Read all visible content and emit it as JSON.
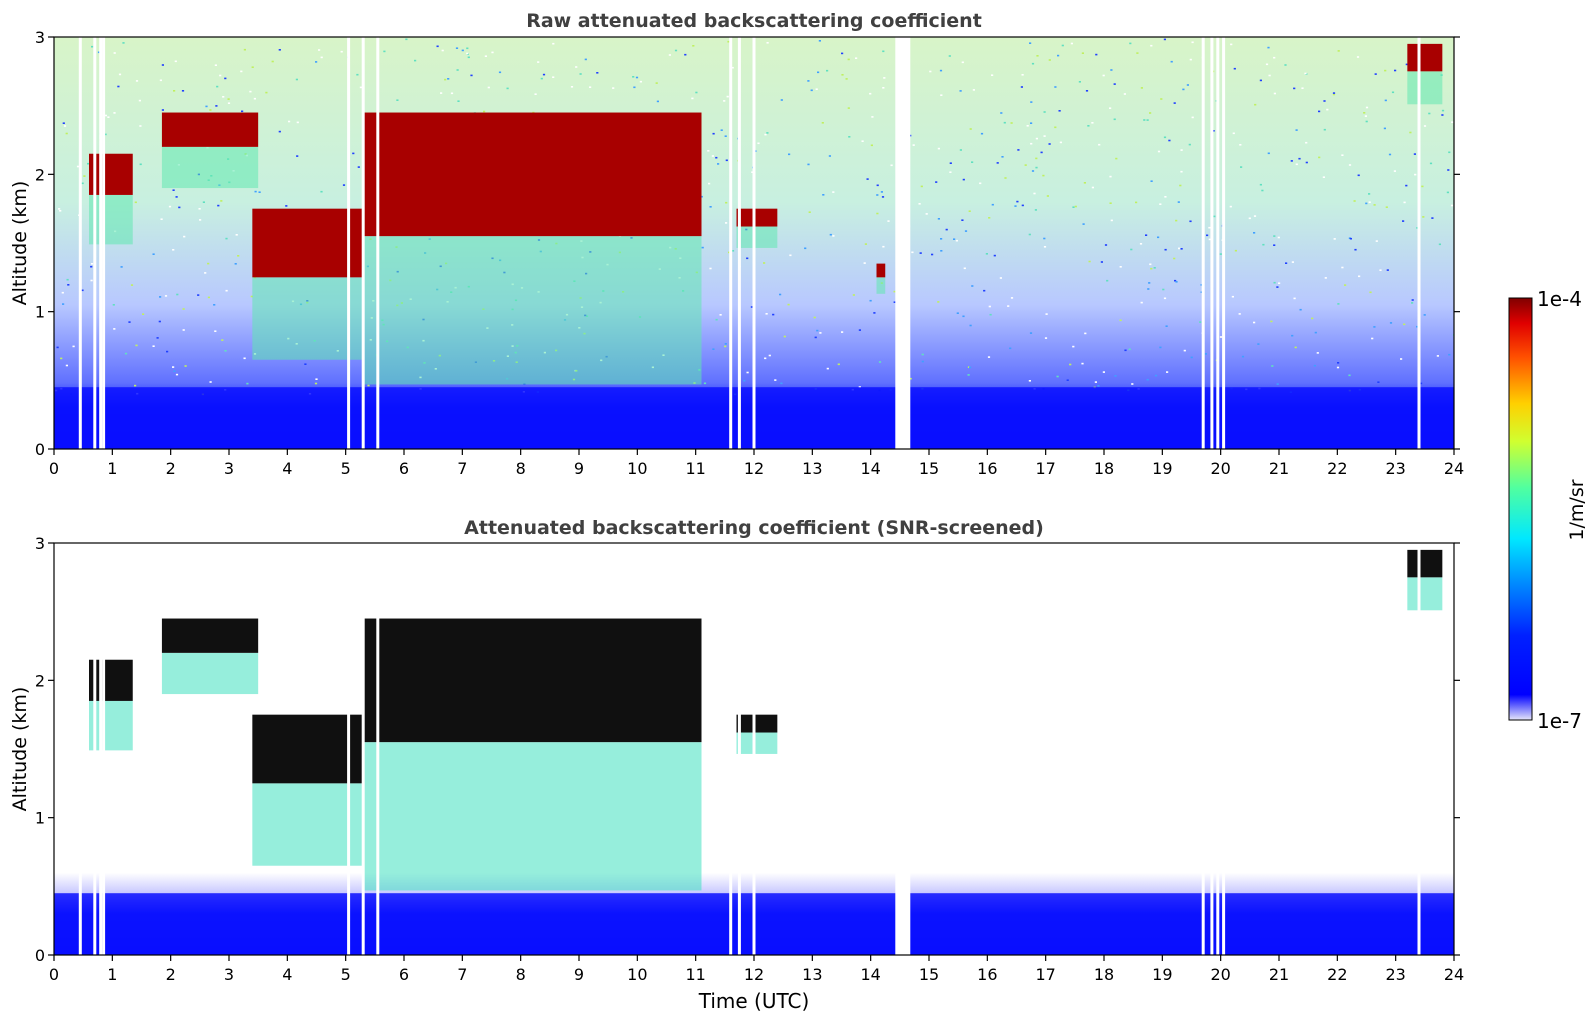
{
  "chart_data": [
    {
      "type": "heatmap",
      "title": "Raw attenuated backscattering coefficient",
      "xlabel": "",
      "ylabel": "Altitude (km)",
      "xlim": [
        0,
        24
      ],
      "ylim": [
        0,
        3
      ],
      "xticks": [
        "0",
        "1",
        "2",
        "3",
        "4",
        "5",
        "6",
        "7",
        "8",
        "9",
        "10",
        "11",
        "12",
        "13",
        "14",
        "15",
        "16",
        "17",
        "18",
        "19",
        "20",
        "21",
        "22",
        "23",
        "24"
      ],
      "yticks": [
        "0",
        "1",
        "2",
        "3"
      ],
      "scale": "log",
      "noise_screened": false,
      "features": [
        {
          "kind": "cloud",
          "x": [
            0.6,
            1.35
          ],
          "y": [
            1.85,
            2.15
          ]
        },
        {
          "kind": "cloud",
          "x": [
            1.85,
            3.5
          ],
          "y": [
            2.2,
            2.45
          ]
        },
        {
          "kind": "cloud",
          "x": [
            3.4,
            5.3
          ],
          "y": [
            1.25,
            1.75
          ]
        },
        {
          "kind": "cloud",
          "x": [
            5.3,
            11.1
          ],
          "y": [
            1.55,
            2.45
          ]
        },
        {
          "kind": "cloud",
          "x": [
            11.7,
            12.4
          ],
          "y": [
            1.62,
            1.75
          ]
        },
        {
          "kind": "cloud",
          "x": [
            14.1,
            14.25
          ],
          "y": [
            1.25,
            1.35
          ]
        },
        {
          "kind": "cloud",
          "x": [
            23.2,
            23.8
          ],
          "y": [
            2.75,
            2.95
          ]
        },
        {
          "kind": "boundary_layer",
          "x": [
            0,
            24
          ],
          "y": [
            0,
            0.45
          ]
        }
      ],
      "no_data_times": [
        0.45,
        0.7,
        0.8,
        0.85,
        5.05,
        5.3,
        5.55,
        11.6,
        11.75,
        12.0,
        14.55,
        19.7,
        19.85,
        19.95,
        20.05,
        23.4
      ]
    },
    {
      "type": "heatmap",
      "title": "Attenuated backscattering coefficient (SNR-screened)",
      "xlabel": "Time (UTC)",
      "ylabel": "Altitude (km)",
      "xlim": [
        0,
        24
      ],
      "ylim": [
        0,
        3
      ],
      "xticks": [
        "0",
        "1",
        "2",
        "3",
        "4",
        "5",
        "6",
        "7",
        "8",
        "9",
        "10",
        "11",
        "12",
        "13",
        "14",
        "15",
        "16",
        "17",
        "18",
        "19",
        "20",
        "21",
        "22",
        "23",
        "24"
      ],
      "yticks": [
        "0",
        "1",
        "2",
        "3"
      ],
      "scale": "log",
      "noise_screened": true,
      "features": [
        {
          "kind": "cloud",
          "x": [
            0.6,
            1.35
          ],
          "y": [
            1.85,
            2.15
          ]
        },
        {
          "kind": "cloud",
          "x": [
            1.85,
            3.5
          ],
          "y": [
            2.2,
            2.45
          ]
        },
        {
          "kind": "cloud",
          "x": [
            3.4,
            5.3
          ],
          "y": [
            1.25,
            1.75
          ]
        },
        {
          "kind": "cloud",
          "x": [
            5.3,
            11.1
          ],
          "y": [
            1.55,
            2.45
          ]
        },
        {
          "kind": "cloud",
          "x": [
            11.7,
            12.4
          ],
          "y": [
            1.62,
            1.75
          ]
        },
        {
          "kind": "cloud",
          "x": [
            23.2,
            23.8
          ],
          "y": [
            2.75,
            2.95
          ]
        },
        {
          "kind": "boundary_layer",
          "x": [
            0,
            24
          ],
          "y": [
            0,
            0.45
          ]
        }
      ],
      "no_data_times": [
        0.45,
        0.7,
        0.8,
        0.85,
        5.05,
        5.3,
        5.55,
        11.6,
        11.75,
        12.0,
        14.55,
        19.7,
        19.85,
        19.95,
        20.05,
        23.4
      ]
    }
  ],
  "colorbar": {
    "label": "1/m/sr",
    "max_label": "1e-4",
    "min_label": "1e-7",
    "colormap": "jet",
    "colors": [
      "#e6e6fa",
      "#0000ff",
      "#0080ff",
      "#00e0ff",
      "#40ffb0",
      "#b0ff40",
      "#ffe000",
      "#ff8000",
      "#ff1000",
      "#800000"
    ]
  }
}
